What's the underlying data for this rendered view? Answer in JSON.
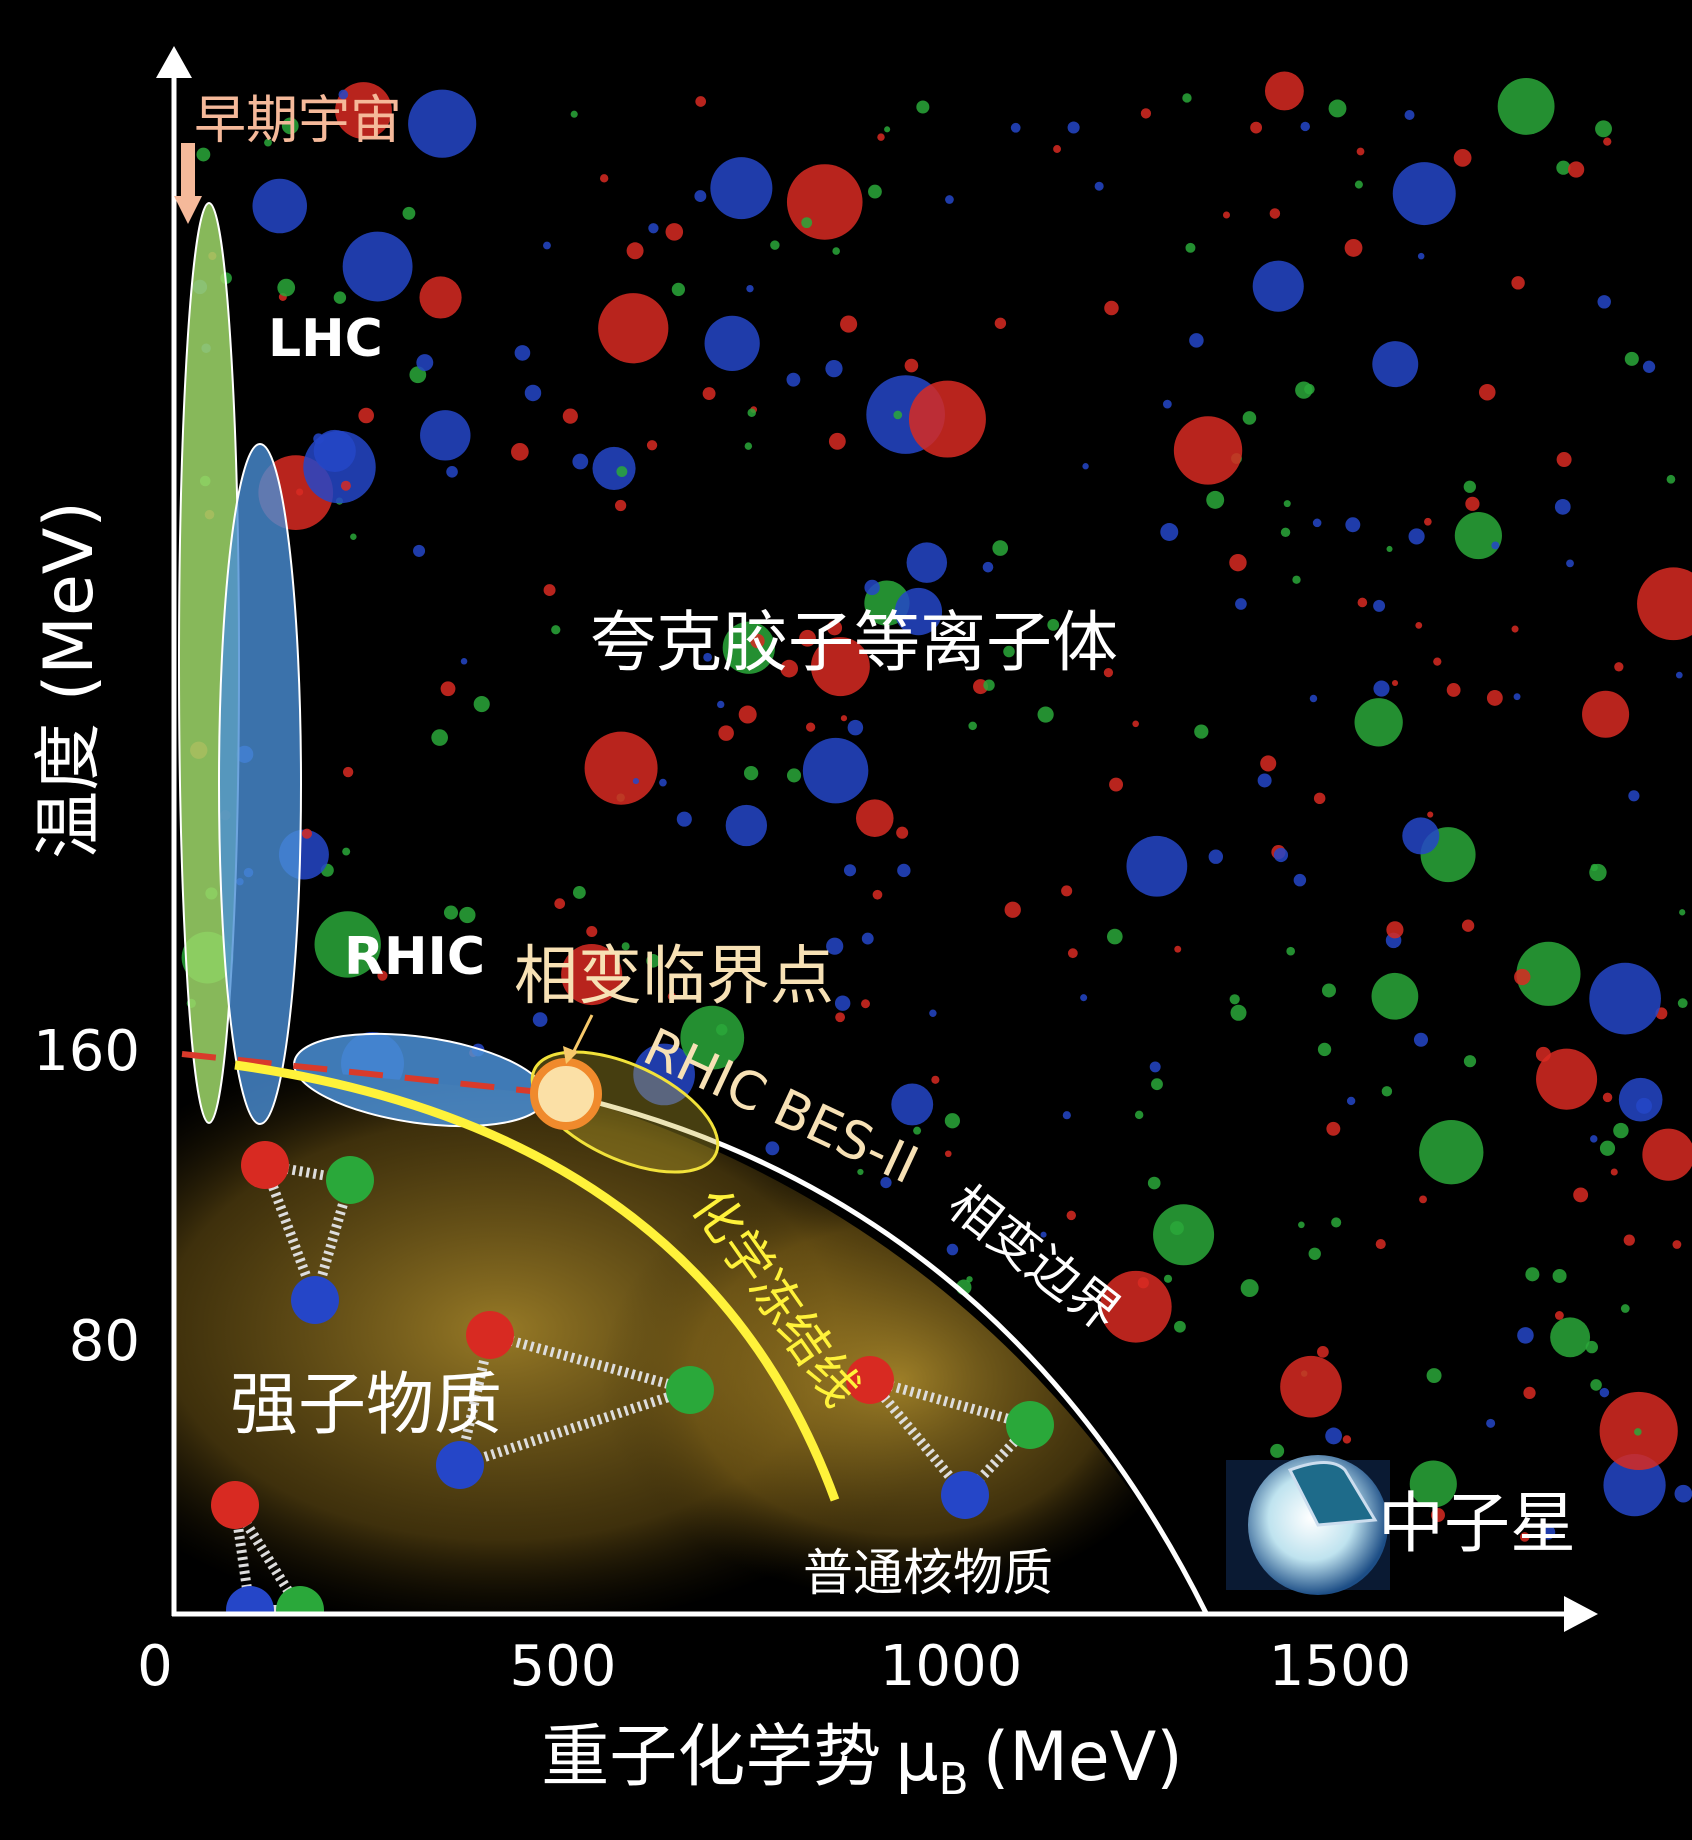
{
  "axes": {
    "x_label_main": "重子化学势",
    "x_label_symbol": "μ",
    "x_label_subscript": "B",
    "x_label_unit": "(MeV)",
    "y_label": "温度 (MeV)",
    "x_ticks": [
      "0",
      "500",
      "1000",
      "1500"
    ],
    "y_ticks": [
      "160",
      "80"
    ]
  },
  "regions": {
    "early_universe": "早期宇宙",
    "qgp": "夸克胶子等离子体",
    "hadron_matter": "强子物质",
    "nuclear_matter": "普通核物质",
    "neutron_star": "中子星"
  },
  "experiments": {
    "lhc": "LHC",
    "rhic": "RHIC",
    "rhic_bes": "RHIC BES-II"
  },
  "lines": {
    "critical_point": "相变临界点",
    "phase_boundary": "相变边界",
    "chemical_freezeout": "化学冻结线"
  },
  "colors": {
    "background": "#000000",
    "lhc": "#9fd86a",
    "rhic": "#4a8fd6",
    "critical_point_fill": "#fbe0a6",
    "critical_point_ring": "#f08a2c",
    "freezeout_line": "#fff23a",
    "phase_boundary": "#ffffff",
    "crossover_dashed": "#d93a2b",
    "label_highlight": "#f7e1b5",
    "hadron_glow": "#c9a233"
  }
}
